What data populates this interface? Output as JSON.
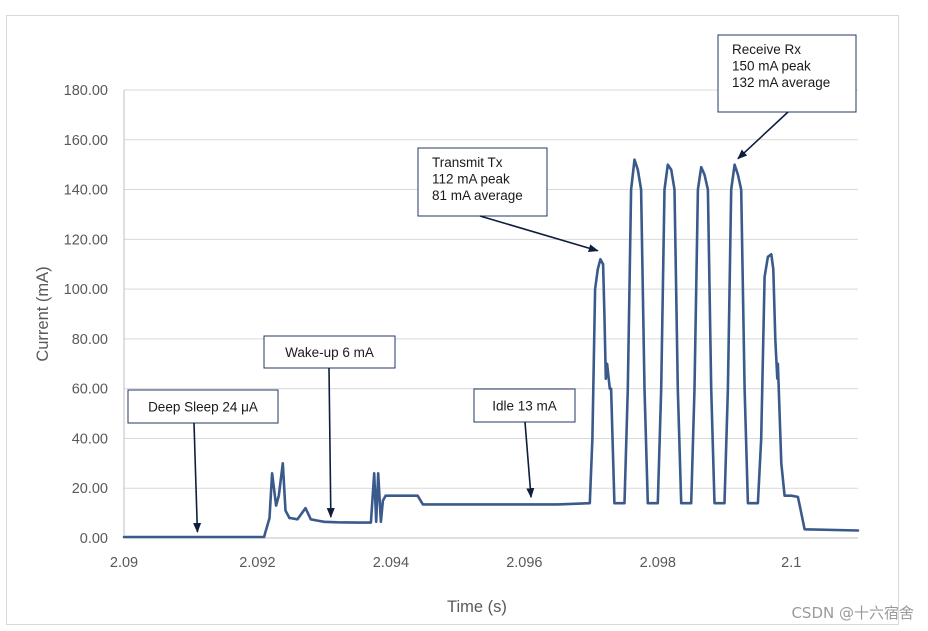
{
  "chart_data": {
    "type": "line",
    "title": "",
    "xlabel": "Time (s)",
    "ylabel": "Current (mA)",
    "xlim": [
      2.09,
      2.101
    ],
    "ylim": [
      0,
      180
    ],
    "x_ticks": [
      2.09,
      2.092,
      2.094,
      2.096,
      2.098,
      2.1
    ],
    "x_tick_labels": [
      "2.09",
      "2.092",
      "2.094",
      "2.096",
      "2.098",
      "2.1"
    ],
    "y_ticks": [
      0,
      20,
      40,
      60,
      80,
      100,
      120,
      140,
      160,
      180
    ],
    "y_tick_labels": [
      "0.00",
      "20.00",
      "40.00",
      "60.00",
      "80.00",
      "100.00",
      "120.00",
      "140.00",
      "160.00",
      "180.00"
    ],
    "grid": true,
    "line_color": "#3b5a8c",
    "series": [
      {
        "name": "Current",
        "x": [
          2.09,
          2.0921,
          2.09212,
          2.09218,
          2.09222,
          2.09228,
          2.09232,
          2.09238,
          2.09242,
          2.09248,
          2.0925,
          2.0926,
          2.09272,
          2.0928,
          2.0929,
          2.093,
          2.0932,
          2.0935,
          2.0937,
          2.09375,
          2.09378,
          2.09381,
          2.09385,
          2.09388,
          2.09392,
          2.094,
          2.0944,
          2.09448,
          2.0946,
          2.0965,
          2.09698,
          2.09702,
          2.09706,
          2.0971,
          2.09714,
          2.09718,
          2.0972,
          2.09722,
          2.09724,
          2.09728,
          2.0973,
          2.09735,
          2.0974,
          2.0975,
          2.0975,
          2.09755,
          2.0976,
          2.09765,
          2.0977,
          2.09775,
          2.0978,
          2.09785,
          2.0979,
          2.098,
          2.098,
          2.09805,
          2.0981,
          2.09815,
          2.0982,
          2.09825,
          2.0983,
          2.09835,
          2.0984,
          2.0985,
          2.0985,
          2.09855,
          2.0986,
          2.09865,
          2.0987,
          2.09875,
          2.0988,
          2.09885,
          2.0989,
          2.099,
          2.099,
          2.09905,
          2.0991,
          2.09915,
          2.0992,
          2.09925,
          2.0993,
          2.09935,
          2.0994,
          2.0995,
          2.0995,
          2.09955,
          2.0996,
          2.09965,
          2.0997,
          2.09973,
          2.09976,
          2.09979,
          2.0998,
          2.09985,
          2.0999,
          2.1,
          2.1001,
          2.10015,
          2.1002,
          2.101
        ],
        "y": [
          0.4,
          0.4,
          2.5,
          8,
          26,
          13,
          17,
          30,
          11,
          8,
          8,
          7.5,
          12,
          7.5,
          7,
          6.5,
          6.3,
          6.2,
          6.2,
          26,
          6.5,
          26,
          6.5,
          15,
          17,
          17,
          17,
          13.5,
          13.5,
          13.5,
          14,
          40,
          100,
          108,
          112,
          110,
          90,
          64,
          70,
          60,
          60,
          14,
          14,
          14,
          14,
          60,
          140,
          152,
          148,
          140,
          60,
          14,
          14,
          14,
          14,
          60,
          140,
          150,
          148,
          140,
          60,
          14,
          14,
          14,
          14,
          60,
          140,
          149,
          146,
          140,
          60,
          14,
          14,
          14,
          14,
          60,
          140,
          150,
          146,
          140,
          60,
          14,
          14,
          14,
          14,
          40,
          105,
          113,
          114,
          108,
          80,
          64,
          70,
          30,
          17,
          17,
          16.5,
          10,
          3.5,
          3.0
        ]
      }
    ],
    "annotations": [
      {
        "id": "deep-sleep",
        "text": [
          "Deep Sleep 24 μA"
        ],
        "target": [
          2.0911,
          0
        ]
      },
      {
        "id": "wake-up",
        "text": [
          "Wake-up 6 mA"
        ],
        "target": [
          2.0931,
          6
        ]
      },
      {
        "id": "idle",
        "text": [
          "Idle 13 mA"
        ],
        "target": [
          2.0961,
          14
        ]
      },
      {
        "id": "transmit",
        "text": [
          "Transmit Tx",
          "112 mA peak",
          "81 mA average"
        ],
        "target": [
          2.0971,
          113
        ]
      },
      {
        "id": "receive",
        "text": [
          "Receive Rx",
          "150 mA peak",
          "132 mA average"
        ],
        "target": [
          2.0992,
          150
        ]
      }
    ]
  },
  "watermark": "CSDN @十六宿舍"
}
